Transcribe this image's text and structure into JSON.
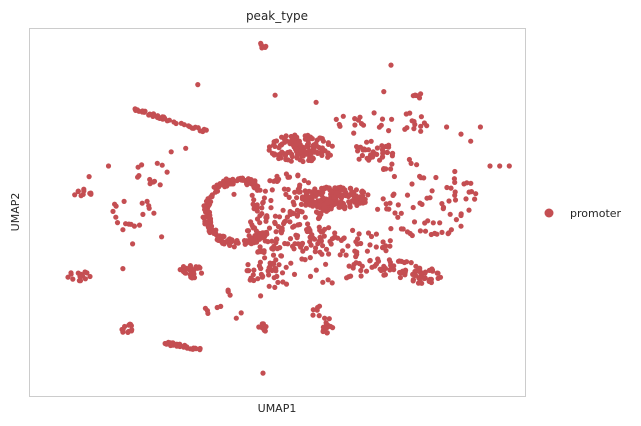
{
  "chart_data": {
    "type": "scatter",
    "title": "peak_type",
    "xlabel": "UMAP1",
    "ylabel": "UMAP2",
    "xlim": [
      0,
      100
    ],
    "ylim": [
      0,
      100
    ],
    "grid": false,
    "legend_position": "right",
    "series": [
      {
        "name": "promoter",
        "color": "#c44e52",
        "clusters": [
          {
            "shape": "blob",
            "cx": 62,
            "cy": 54,
            "rx": 7,
            "ry": 3.2,
            "n": 170
          },
          {
            "shape": "blob",
            "cx": 55,
            "cy": 68,
            "rx": 7,
            "ry": 4,
            "n": 120
          },
          {
            "shape": "ring",
            "cx": 42,
            "cy": 50,
            "rx": 10,
            "ry": 10,
            "n": 180
          },
          {
            "shape": "blob",
            "cx": 52,
            "cy": 48,
            "rx": 9,
            "ry": 13,
            "n": 180
          },
          {
            "shape": "blob",
            "cx": 70,
            "cy": 67,
            "rx": 4.5,
            "ry": 3,
            "n": 40
          },
          {
            "shape": "blob",
            "cx": 80,
            "cy": 54,
            "rx": 12,
            "ry": 12,
            "n": 60
          },
          {
            "shape": "blob",
            "cx": 72,
            "cy": 34,
            "rx": 8,
            "ry": 2.8,
            "n": 45
          },
          {
            "shape": "blob",
            "cx": 80,
            "cy": 32,
            "rx": 4,
            "ry": 2.2,
            "n": 35
          },
          {
            "shape": "blob",
            "cx": 67,
            "cy": 41,
            "rx": 7,
            "ry": 4,
            "n": 30
          },
          {
            "shape": "blob",
            "cx": 47,
            "cy": 33,
            "rx": 3.5,
            "ry": 7,
            "n": 35
          },
          {
            "shape": "blob",
            "cx": 57,
            "cy": 35,
            "rx": 10,
            "ry": 7,
            "n": 30
          },
          {
            "shape": "arc",
            "x0": 20,
            "y0": 79,
            "x1": 35,
            "y1": 73,
            "n": 40
          },
          {
            "shape": "blob",
            "cx": 24,
            "cy": 61,
            "rx": 4,
            "ry": 4,
            "n": 12
          },
          {
            "shape": "blob",
            "cx": 32,
            "cy": 33,
            "rx": 2.5,
            "ry": 2.4,
            "n": 25
          },
          {
            "shape": "blob",
            "cx": 9,
            "cy": 32,
            "rx": 2.5,
            "ry": 1.5,
            "n": 14
          },
          {
            "shape": "blob",
            "cx": 10,
            "cy": 55,
            "rx": 2,
            "ry": 1.5,
            "n": 10
          },
          {
            "shape": "blob",
            "cx": 20,
            "cy": 50,
            "rx": 5,
            "ry": 4,
            "n": 16
          },
          {
            "shape": "arc",
            "x0": 27,
            "y0": 13,
            "x1": 34,
            "y1": 11,
            "n": 28
          },
          {
            "shape": "blob",
            "cx": 19,
            "cy": 17,
            "rx": 1.5,
            "ry": 1.4,
            "n": 12
          },
          {
            "shape": "blob",
            "cx": 47,
            "cy": 17,
            "rx": 1,
            "ry": 2,
            "n": 8
          },
          {
            "shape": "blob",
            "cx": 60,
            "cy": 18,
            "rx": 1.5,
            "ry": 2.5,
            "n": 16
          },
          {
            "shape": "blob",
            "cx": 58,
            "cy": 22,
            "rx": 1,
            "ry": 2,
            "n": 6
          },
          {
            "shape": "blob",
            "cx": 47,
            "cy": 97,
            "rx": 0.7,
            "ry": 0.9,
            "n": 6
          },
          {
            "shape": "blob",
            "cx": 67,
            "cy": 75,
            "rx": 6,
            "ry": 3,
            "n": 14
          },
          {
            "shape": "blob",
            "cx": 77,
            "cy": 75,
            "rx": 4,
            "ry": 3,
            "n": 14
          },
          {
            "shape": "blob",
            "cx": 79,
            "cy": 83,
            "rx": 1,
            "ry": 1,
            "n": 5
          },
          {
            "shape": "blob",
            "cx": 88,
            "cy": 53,
            "rx": 4,
            "ry": 6,
            "n": 14
          },
          {
            "shape": "blob",
            "cx": 40,
            "cy": 23,
            "rx": 5,
            "ry": 5,
            "n": 10
          },
          {
            "shape": "blob",
            "cx": 59,
            "cy": 43,
            "rx": 5,
            "ry": 4,
            "n": 12
          }
        ],
        "points": [
          [
            33.5,
            86
          ],
          [
            49.5,
            83
          ],
          [
            58,
            81
          ],
          [
            72,
            84
          ],
          [
            70,
            78
          ],
          [
            73,
            73
          ],
          [
            85,
            74
          ],
          [
            92,
            74
          ],
          [
            90,
            70
          ],
          [
            94,
            63
          ],
          [
            96,
            63
          ],
          [
            88,
            72
          ],
          [
            86,
            45
          ],
          [
            88,
            46
          ],
          [
            98,
            63
          ],
          [
            47,
            4.5
          ],
          [
            20,
            41
          ],
          [
            18,
            45
          ],
          [
            23,
            53
          ],
          [
            26,
            43
          ],
          [
            15,
            63
          ],
          [
            11,
            60
          ],
          [
            18,
            34
          ],
          [
            28,
            67
          ],
          [
            31,
            68
          ],
          [
            73.5,
            91.5
          ],
          [
            88,
            49
          ],
          [
            75,
            52
          ],
          [
            82,
            56
          ],
          [
            41,
            55
          ]
        ]
      }
    ]
  }
}
